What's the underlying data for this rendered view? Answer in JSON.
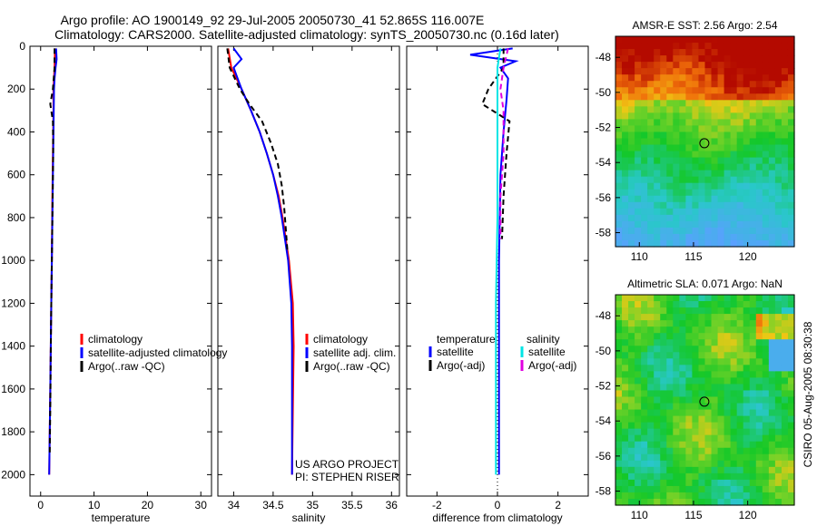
{
  "figure": {
    "title_line1": "Argo profile: AO 1900149_92 29-Jul-2005 20050730_41 52.865S 116.007E",
    "title_line2": "Climatology: CARS2000. Satellite-adjusted climatology: synTS_20050730.nc (0.16d later)",
    "credit": "CSIRO 05-Aug-2005 08:30:38",
    "project_line1": "US ARGO PROJECT",
    "project_line2": "PI: STEPHEN RISER"
  },
  "colors": {
    "climatology": "#ff0000",
    "satellite": "#0000ff",
    "argo": "#000000",
    "salinity_satellite": "#00e5e5",
    "salinity_argo": "#e000e0",
    "marker": "#000000"
  },
  "chart_data": [
    {
      "id": "temperature",
      "type": "line",
      "xlabel": "temperature",
      "ylabel": "",
      "xlim": [
        -2,
        32
      ],
      "ylim": [
        2100,
        0
      ],
      "xticks": [
        0,
        10,
        20,
        30
      ],
      "yticks": [
        0,
        200,
        400,
        600,
        800,
        1000,
        1200,
        1400,
        1600,
        1800,
        2000
      ],
      "legend": [
        "climatology",
        "satellite-adjusted climatology",
        "Argo(..raw -QC)"
      ],
      "series": [
        {
          "name": "climatology",
          "color": "climatology",
          "dash": "",
          "depth": [
            10,
            100,
            200,
            300,
            400,
            500,
            700,
            1000,
            1300,
            1600,
            2000
          ],
          "values": [
            2.7,
            2.6,
            2.4,
            2.4,
            2.35,
            2.3,
            2.2,
            2.1,
            1.95,
            1.8,
            1.6
          ]
        },
        {
          "name": "satellite-adjusted climatology",
          "color": "satellite",
          "dash": "",
          "depth": [
            10,
            60,
            100,
            150,
            200,
            300,
            500,
            700,
            1000,
            1300,
            1600,
            2000
          ],
          "values": [
            2.9,
            3.0,
            2.8,
            2.6,
            2.5,
            2.45,
            2.35,
            2.25,
            2.1,
            1.95,
            1.8,
            1.6
          ]
        },
        {
          "name": "Argo(..raw -QC)",
          "color": "argo",
          "dash": "6,4",
          "depth": [
            10,
            100,
            200,
            270,
            350,
            500,
            700,
            1000,
            1300,
            1600,
            1900
          ],
          "values": [
            2.6,
            2.6,
            2.3,
            1.8,
            2.3,
            2.35,
            2.25,
            2.1,
            1.95,
            1.85,
            1.7
          ]
        }
      ]
    },
    {
      "id": "salinity",
      "type": "line",
      "xlabel": "salinity",
      "ylabel": "",
      "xlim": [
        33.8,
        36.1
      ],
      "ylim": [
        2100,
        0
      ],
      "xticks": [
        34,
        34.5,
        35,
        35.5,
        36
      ],
      "yticks": [
        0,
        200,
        400,
        600,
        800,
        1000,
        1200,
        1400,
        1600,
        1800,
        2000
      ],
      "legend": [
        "climatology",
        "satellite adj. clim.",
        "Argo(..raw -QC)"
      ],
      "series": [
        {
          "name": "climatology",
          "color": "climatology",
          "dash": "",
          "depth": [
            10,
            100,
            200,
            300,
            400,
            500,
            600,
            700,
            800,
            900,
            1000,
            1200,
            1400,
            1700,
            2000
          ],
          "values": [
            33.93,
            33.97,
            34.1,
            34.22,
            34.33,
            34.42,
            34.5,
            34.57,
            34.62,
            34.66,
            34.7,
            34.75,
            34.76,
            34.75,
            34.74
          ]
        },
        {
          "name": "satellite adj. clim.",
          "color": "satellite",
          "dash": "",
          "depth": [
            10,
            60,
            100,
            150,
            200,
            300,
            400,
            500,
            600,
            700,
            800,
            900,
            1000,
            1200,
            1400,
            1700,
            2000
          ],
          "values": [
            34.0,
            34.1,
            34.0,
            34.05,
            34.1,
            34.22,
            34.33,
            34.42,
            34.5,
            34.56,
            34.61,
            34.65,
            34.69,
            34.73,
            34.74,
            34.74,
            34.74
          ]
        },
        {
          "name": "Argo(..raw -QC)",
          "color": "argo",
          "dash": "6,4",
          "depth": [
            10,
            100,
            200,
            270,
            350,
            450,
            550,
            650,
            750,
            850,
            950
          ],
          "values": [
            33.92,
            33.95,
            34.08,
            34.2,
            34.36,
            34.47,
            34.56,
            34.61,
            34.64,
            34.66,
            34.68
          ]
        }
      ]
    },
    {
      "id": "difference",
      "type": "line",
      "xlabel": "difference from climatology",
      "ylabel": "",
      "xlim": [
        -3,
        3
      ],
      "ylim": [
        2100,
        0
      ],
      "xticks": [
        -2,
        0,
        2
      ],
      "yticks": [
        0,
        200,
        400,
        600,
        800,
        1000,
        1200,
        1400,
        1600,
        1800,
        2000
      ],
      "legend_headers": [
        "temperature",
        "salinity"
      ],
      "legend": [
        "satellite",
        "Argo(-adj)",
        "satellite",
        "Argo(-adj)"
      ],
      "series": [
        {
          "name": "temperature satellite",
          "color": "satellite",
          "dash": "",
          "depth": [
            10,
            40,
            70,
            100,
            150,
            250,
            400,
            600,
            1000,
            1400,
            2000
          ],
          "values": [
            0.5,
            -0.9,
            0.6,
            0.1,
            0.35,
            0.3,
            0.2,
            0.1,
            0.05,
            0.05,
            0.05
          ]
        },
        {
          "name": "temperature Argo(-adj)",
          "color": "argo",
          "dash": "6,4",
          "depth": [
            10,
            100,
            200,
            270,
            350,
            500,
            700,
            900
          ],
          "values": [
            0.2,
            0.2,
            -0.3,
            -0.5,
            0.4,
            0.3,
            0.2,
            0.15
          ]
        },
        {
          "name": "salinity satellite",
          "color": "salinity_satellite",
          "dash": "",
          "depth": [
            10,
            100,
            200,
            400,
            800,
            1200,
            1600,
            2000
          ],
          "values": [
            0.1,
            0.0,
            0.0,
            0.0,
            0.0,
            -0.05,
            -0.05,
            -0.05
          ]
        },
        {
          "name": "salinity Argo(-adj)",
          "color": "salinity_argo",
          "dash": "6,4",
          "depth": [
            10,
            100,
            200,
            300,
            500,
            700,
            900
          ],
          "values": [
            0.35,
            0.2,
            0.1,
            0.2,
            0.2,
            0.1,
            0.1
          ]
        }
      ]
    },
    {
      "id": "sst_map",
      "type": "heatmap",
      "title": "AMSR-E SST: 2.56 Argo: 2.54",
      "xlim": [
        107.8,
        124.3
      ],
      "ylim": [
        -58.8,
        -46.8
      ],
      "xticks": [
        110,
        115,
        120
      ],
      "yticks": [
        -48,
        -50,
        -52,
        -54,
        -56,
        -58
      ],
      "marker": {
        "lon": 116.0,
        "lat": -52.9
      }
    },
    {
      "id": "sla_map",
      "type": "heatmap",
      "title": "Altimetric SLA: 0.071 Argo: NaN",
      "xlim": [
        107.8,
        124.3
      ],
      "ylim": [
        -58.8,
        -46.8
      ],
      "xticks": [
        110,
        115,
        120
      ],
      "yticks": [
        -48,
        -50,
        -52,
        -54,
        -56,
        -58
      ],
      "marker": {
        "lon": 116.0,
        "lat": -52.9
      }
    }
  ]
}
